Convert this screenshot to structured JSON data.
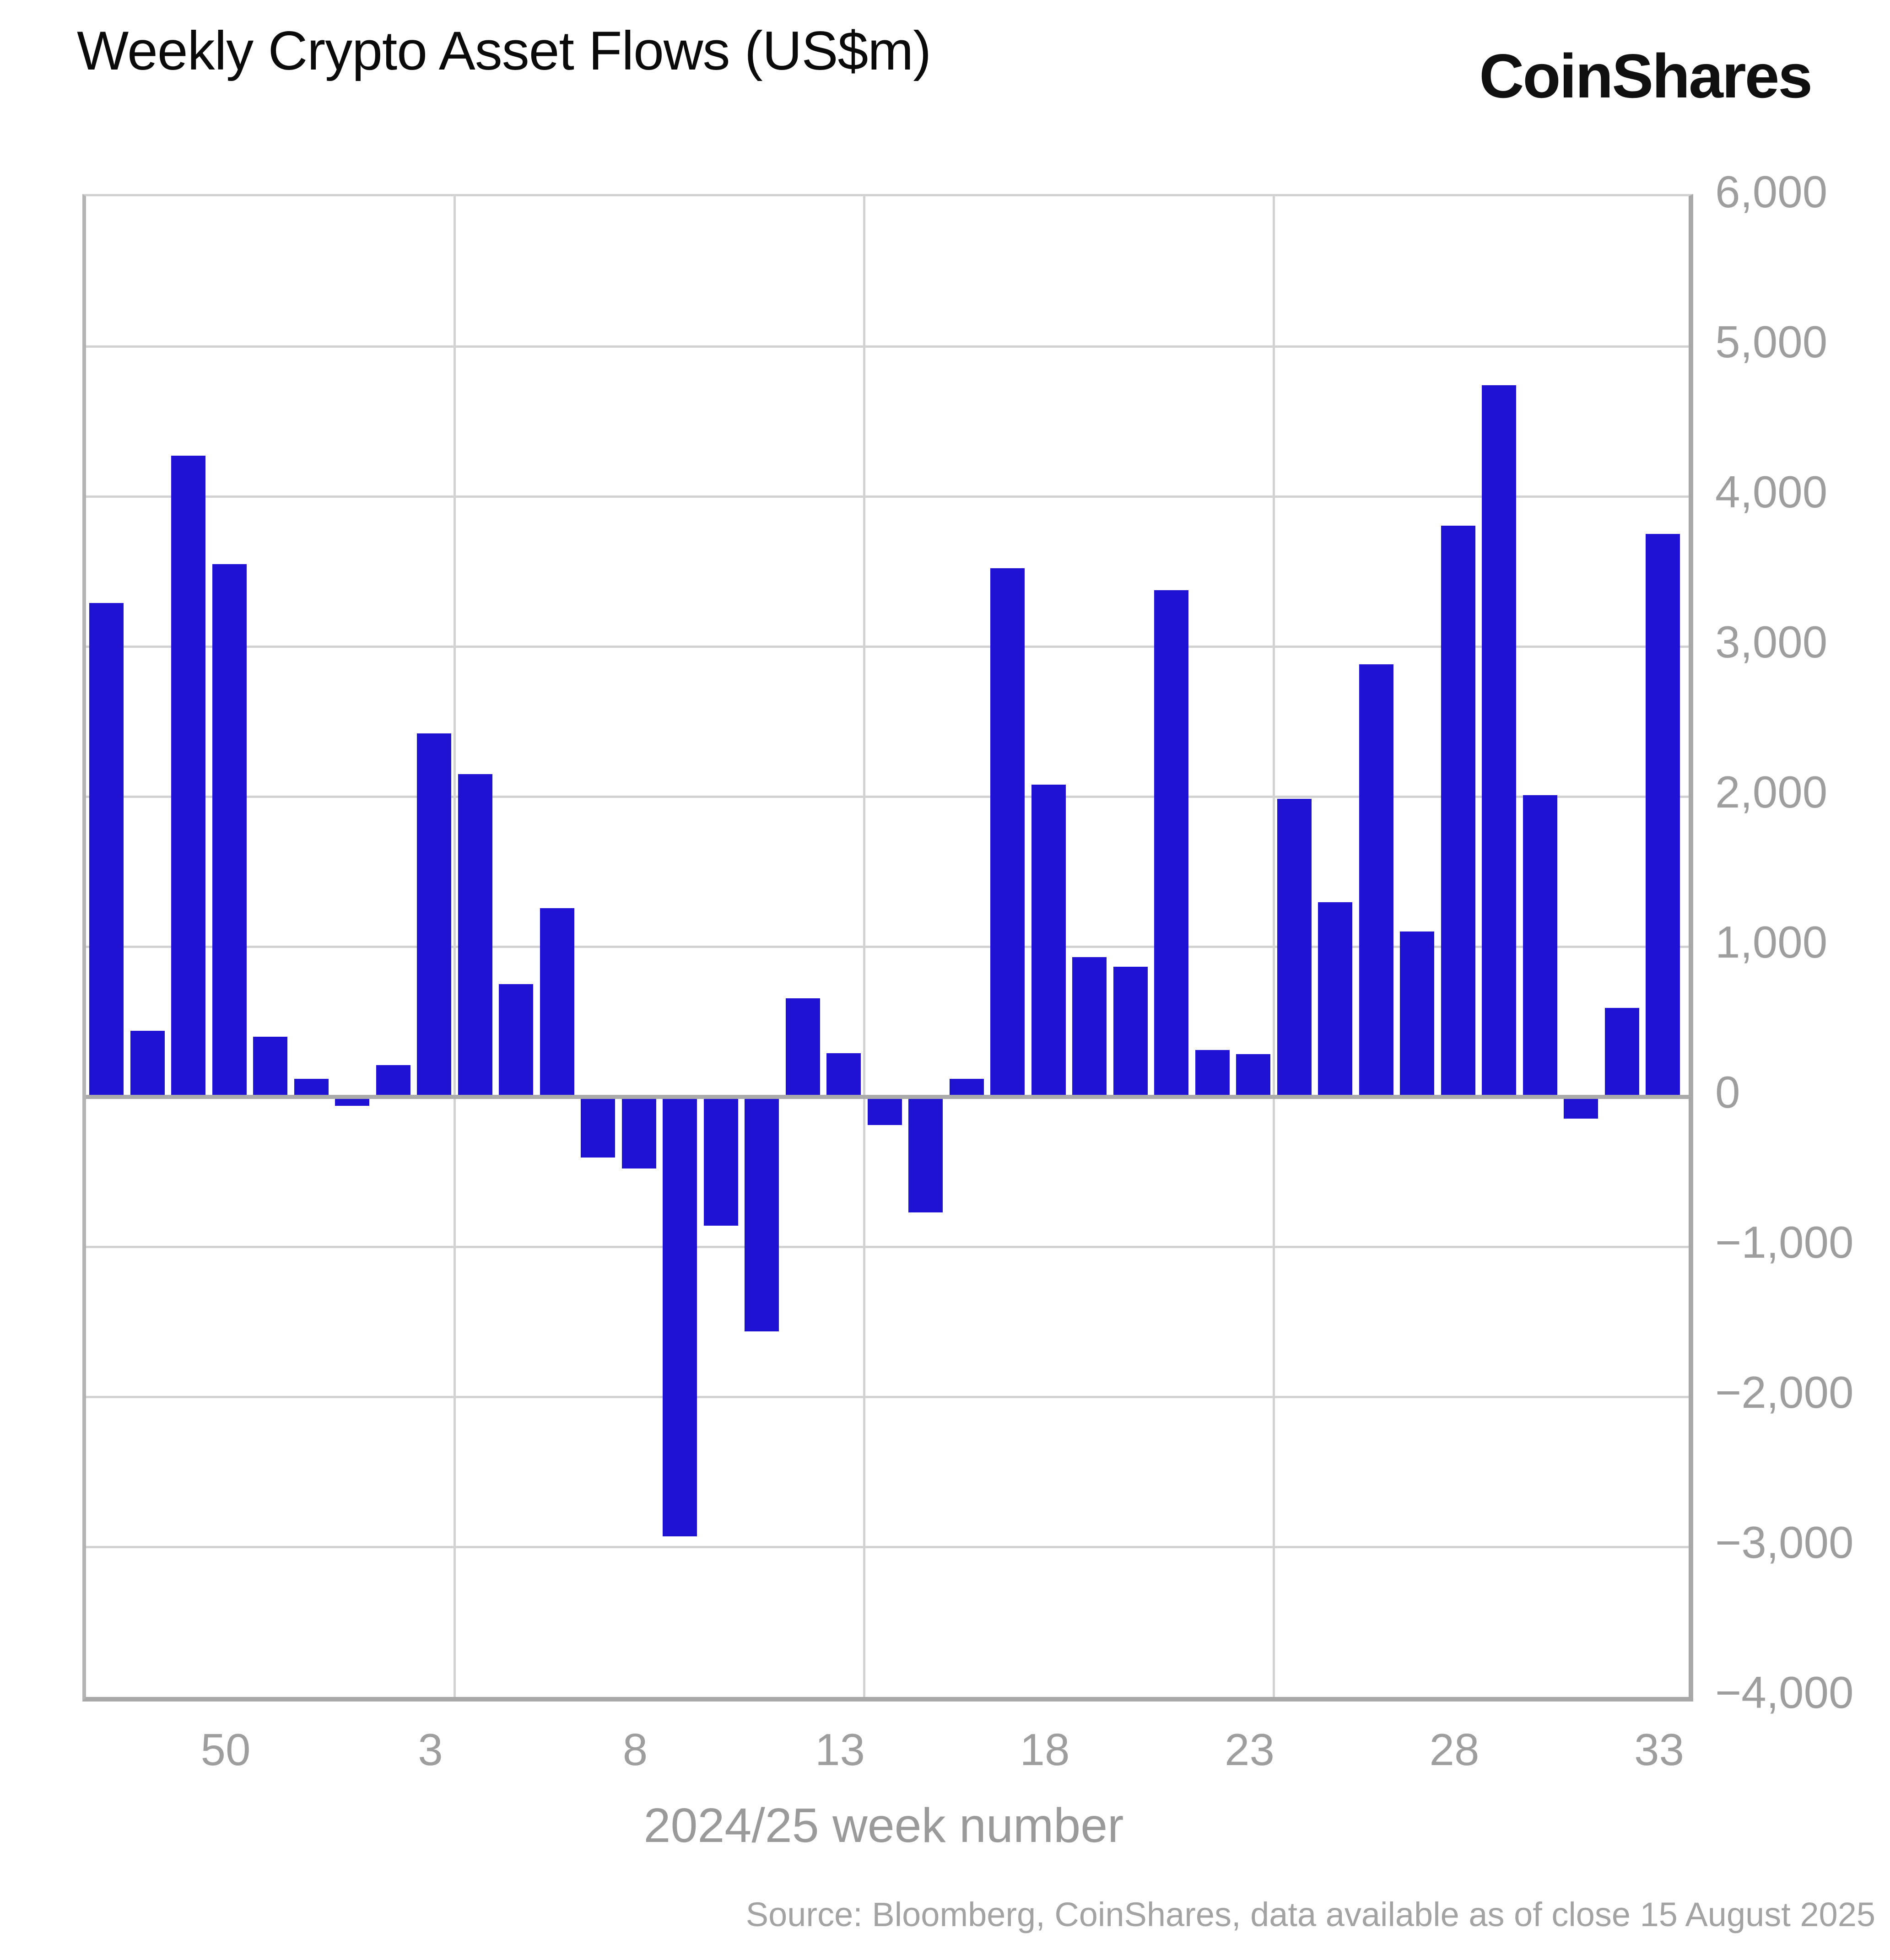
{
  "header": {
    "title": "Weekly Crypto Asset Flows (US$m)",
    "logo_text": "CoinShares"
  },
  "footer": {
    "source": "Source: Bloomberg, CoinShares, data available as of close 15 August 2025"
  },
  "chart_data": {
    "type": "bar",
    "title": "Weekly Crypto Asset Flows (US$m)",
    "xlabel": "2024/25 week number",
    "ylabel": "",
    "ylim": [
      -4000,
      6000
    ],
    "grid": "on",
    "legend": "none",
    "bar_color": "#2012d2",
    "categories": [
      "47",
      "48",
      "49",
      "50",
      "51",
      "52",
      "1",
      "2",
      "3",
      "4",
      "5",
      "6",
      "7",
      "8",
      "9",
      "10",
      "11",
      "12",
      "13",
      "14",
      "15",
      "16",
      "17",
      "18",
      "19",
      "20",
      "21",
      "22",
      "23",
      "24",
      "25",
      "26",
      "27",
      "28",
      "29",
      "30",
      "31",
      "32",
      "33"
    ],
    "values": [
      3290,
      440,
      4270,
      3550,
      400,
      120,
      -60,
      210,
      2420,
      2150,
      750,
      1255,
      -405,
      -480,
      -2930,
      -860,
      -1565,
      655,
      290,
      -190,
      -770,
      120,
      3520,
      2080,
      930,
      865,
      3375,
      310,
      285,
      1985,
      1295,
      2880,
      1100,
      3805,
      4740,
      2010,
      -145,
      590,
      3750
    ],
    "y_tick_labels": [
      "6,000",
      "5,000",
      "4,000",
      "3,000",
      "2,000",
      "1,000",
      "0",
      "−1,000",
      "−2,000",
      "−3,000",
      "−4,000"
    ],
    "y_tick_values": [
      6000,
      5000,
      4000,
      3000,
      2000,
      1000,
      0,
      -1000,
      -2000,
      -3000,
      -4000
    ],
    "x_tick_weeks": [
      "50",
      "3",
      "8",
      "13",
      "18",
      "23",
      "28",
      "33"
    ],
    "x_gridline_after_weeks": [
      "3",
      "13",
      "23"
    ]
  }
}
